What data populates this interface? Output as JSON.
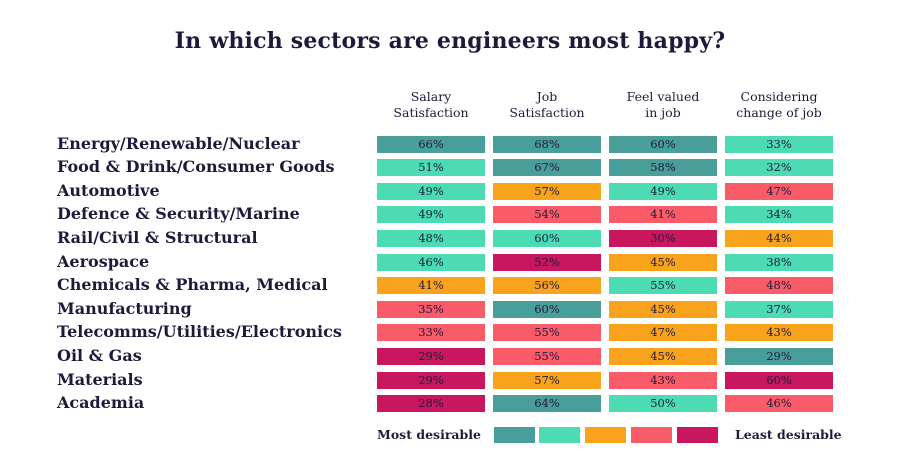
{
  "chart_data": {
    "type": "table",
    "title": "In which sectors are engineers most happy?",
    "columns": [
      {
        "line1": "Salary",
        "line2": "Satisfaction"
      },
      {
        "line1": "Job",
        "line2": "Satisfaction"
      },
      {
        "line1": "Feel valued",
        "line2": "in job"
      },
      {
        "line1": "Considering",
        "line2": "change of job"
      }
    ],
    "rows": [
      {
        "sector": "Energy/Renewable/Nuclear",
        "values": [
          "66%",
          "68%",
          "60%",
          "33%"
        ],
        "levels": [
          1,
          1,
          1,
          2
        ]
      },
      {
        "sector": "Food & Drink/Consumer Goods",
        "values": [
          "51%",
          "67%",
          "58%",
          "32%"
        ],
        "levels": [
          2,
          1,
          1,
          2
        ]
      },
      {
        "sector": "Automotive",
        "values": [
          "49%",
          "57%",
          "49%",
          "47%"
        ],
        "levels": [
          2,
          3,
          2,
          4
        ]
      },
      {
        "sector": "Defence & Security/Marine",
        "values": [
          "49%",
          "54%",
          "41%",
          "34%"
        ],
        "levels": [
          2,
          4,
          4,
          2
        ]
      },
      {
        "sector": "Rail/Civil & Structural",
        "values": [
          "48%",
          "60%",
          "30%",
          "44%"
        ],
        "levels": [
          2,
          2,
          5,
          3
        ]
      },
      {
        "sector": "Aerospace",
        "values": [
          "46%",
          "52%",
          "45%",
          "38%"
        ],
        "levels": [
          2,
          5,
          3,
          2
        ]
      },
      {
        "sector": "Chemicals & Pharma, Medical",
        "values": [
          "41%",
          "56%",
          "55%",
          "48%"
        ],
        "levels": [
          3,
          3,
          2,
          4
        ]
      },
      {
        "sector": "Manufacturing",
        "values": [
          "35%",
          "60%",
          "45%",
          "37%"
        ],
        "levels": [
          4,
          1,
          3,
          2
        ]
      },
      {
        "sector": "Telecomms/Utilities/Electronics",
        "values": [
          "33%",
          "55%",
          "47%",
          "43%"
        ],
        "levels": [
          4,
          4,
          3,
          3
        ]
      },
      {
        "sector": "Oil & Gas",
        "values": [
          "29%",
          "55%",
          "45%",
          "29%"
        ],
        "levels": [
          5,
          4,
          3,
          1
        ]
      },
      {
        "sector": "Materials",
        "values": [
          "29%",
          "57%",
          "43%",
          "60%"
        ],
        "levels": [
          5,
          3,
          4,
          5
        ]
      },
      {
        "sector": "Academia",
        "values": [
          "28%",
          "64%",
          "50%",
          "46%"
        ],
        "levels": [
          5,
          1,
          2,
          4
        ]
      }
    ],
    "legend": {
      "left_label": "Most desirable",
      "right_label": "Least desirable",
      "colors": [
        "#4a9e9a",
        "#4ddbb4",
        "#f9a21b",
        "#fa5b68",
        "#c8175f"
      ]
    }
  }
}
